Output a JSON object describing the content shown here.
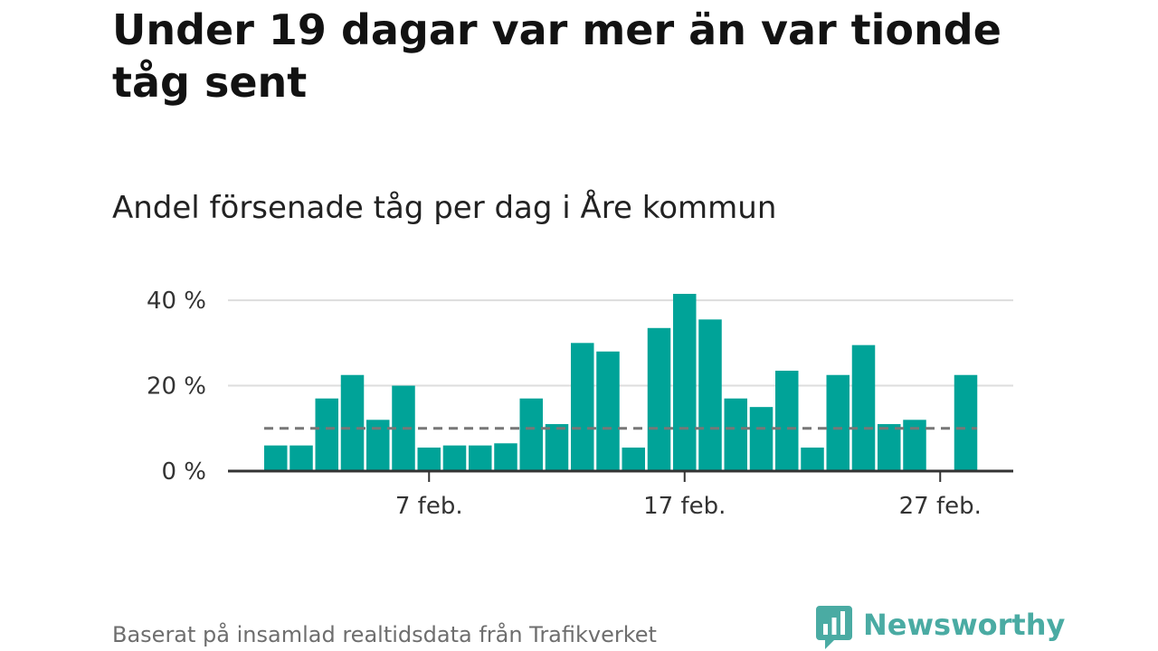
{
  "headline": "Under 19 dagar var mer än var tionde tåg sent",
  "source": "Baserat på insamlad realtidsdata från Trafikverket",
  "brand": {
    "name": "Newsworthy",
    "color": "#4aaba3",
    "icon": "bar-chart-speech-bubble-icon"
  },
  "chart_data": {
    "type": "bar",
    "title": "Andel försenade tåg per dag i Åre kommun",
    "xlabel": "",
    "ylabel": "",
    "x_unit": "day of February",
    "x": [
      1,
      2,
      3,
      4,
      5,
      6,
      7,
      8,
      9,
      10,
      11,
      12,
      13,
      14,
      15,
      16,
      17,
      18,
      19,
      20,
      21,
      22,
      23,
      24,
      25,
      26,
      27,
      28
    ],
    "values": [
      6,
      6,
      17,
      22.5,
      12,
      20,
      5.5,
      6,
      6,
      6.5,
      17,
      11,
      30,
      28,
      5.5,
      33.5,
      41.5,
      35.5,
      17,
      15,
      23.5,
      5.5,
      22.5,
      29.5,
      11,
      12,
      null,
      22.5
    ],
    "ylim": [
      0,
      41.5
    ],
    "yticks": [
      0,
      20,
      40
    ],
    "ytick_labels": [
      "0 %",
      "20 %",
      "40 %"
    ],
    "xticks": [
      7,
      17,
      27
    ],
    "xtick_labels": [
      "7 feb.",
      "17 feb.",
      "27 feb."
    ],
    "reference_line": {
      "value": 10,
      "style": "dashed",
      "color": "#777777"
    },
    "bar_color": "#00a398",
    "grid": true,
    "grid_color": "#dddddd",
    "legend": "none"
  }
}
